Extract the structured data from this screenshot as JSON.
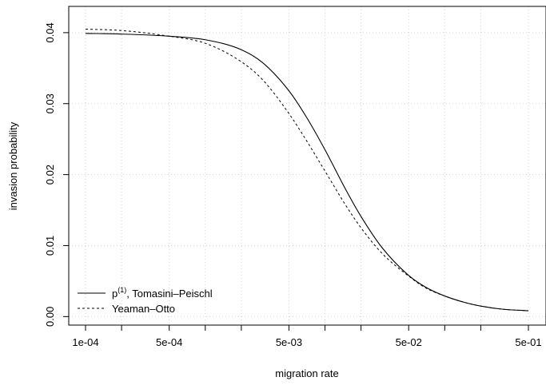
{
  "chart_data": {
    "type": "line",
    "title": "",
    "xlabel": "migration rate",
    "ylabel": "invasion probability",
    "x_scale": "log",
    "xlim": [
      0.0001,
      0.5
    ],
    "ylim": [
      -0.0012,
      0.0437
    ],
    "x_ticks": [
      0.0001,
      0.0002,
      0.0005,
      0.001,
      0.002,
      0.005,
      0.01,
      0.02,
      0.05,
      0.1,
      0.2,
      0.5
    ],
    "x_tick_labels": [
      "1e-04",
      "",
      "5e-04",
      "",
      "",
      "5e-03",
      "",
      "",
      "5e-02",
      "",
      "",
      "5e-01"
    ],
    "y_ticks": [
      0.0,
      0.01,
      0.02,
      0.03,
      0.04
    ],
    "y_tick_labels": [
      "0.00",
      "0.01",
      "0.02",
      "0.03",
      "0.04"
    ],
    "grid": true,
    "legend": "bottom-left",
    "series": [
      {
        "name": "Tomasini–Peischl",
        "name_prefix": "p",
        "name_superscript": "(1)",
        "name_suffix": ", Tomasini–Peischl",
        "line_style": "solid",
        "x": [
          0.0001,
          0.0002,
          0.0005,
          0.001,
          0.002,
          0.003,
          0.005,
          0.007,
          0.01,
          0.015,
          0.02,
          0.03,
          0.05,
          0.07,
          0.1,
          0.15,
          0.2,
          0.3,
          0.5
        ],
        "y": [
          0.0399,
          0.0398,
          0.0395,
          0.039,
          0.0376,
          0.0358,
          0.0318,
          0.0281,
          0.0235,
          0.0178,
          0.0141,
          0.0097,
          0.0058,
          0.0041,
          0.0029,
          0.00195,
          0.00148,
          0.00105,
          0.00082
        ]
      },
      {
        "name": "Yeaman–Otto",
        "line_style": "dashed",
        "x": [
          0.0001,
          0.0002,
          0.0005,
          0.001,
          0.002,
          0.003,
          0.005,
          0.007,
          0.01,
          0.015,
          0.02,
          0.03,
          0.05,
          0.07,
          0.1,
          0.15,
          0.2,
          0.3,
          0.5
        ],
        "y": [
          0.0405,
          0.0403,
          0.0395,
          0.0385,
          0.0359,
          0.0334,
          0.0286,
          0.0248,
          0.0205,
          0.0156,
          0.0125,
          0.0089,
          0.0057,
          0.004,
          0.0029,
          0.00195,
          0.00148,
          0.00105,
          0.00082
        ]
      }
    ]
  }
}
